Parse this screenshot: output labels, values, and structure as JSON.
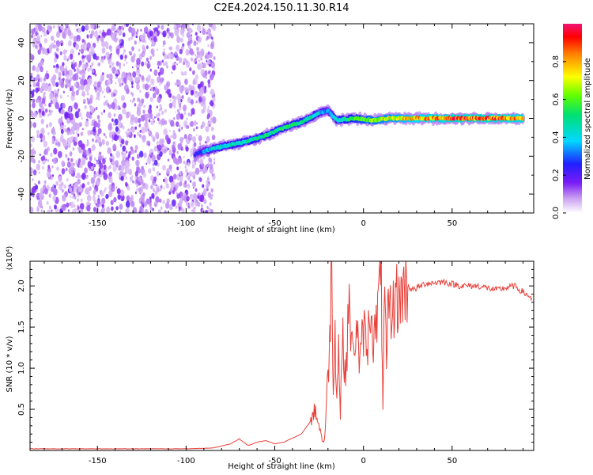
{
  "title": "C2E4.2024.150.11.30.R14",
  "chart_data": [
    {
      "type": "heatmap",
      "xlabel": "Height of straight line (km)",
      "ylabel": "Frequency (Hz)",
      "xlim": [
        -188,
        96
      ],
      "ylim": [
        -50,
        50
      ],
      "x_ticks": [
        -150,
        -100,
        -50,
        0,
        50
      ],
      "y_ticks": [
        -40,
        -20,
        0,
        20,
        40
      ],
      "colorbar": {
        "label": "Normalized spectral amplitude",
        "range": [
          0,
          1
        ],
        "ticks": [
          0.0,
          0.2,
          0.4,
          0.6,
          0.8
        ]
      },
      "noise_region": {
        "x": [
          -188,
          -84
        ],
        "note_values": "scattered low-amplitude purple speckle across full frequency range"
      },
      "signal_trace": [
        {
          "x": -95,
          "y": -19,
          "amp": 0.25
        },
        {
          "x": -85,
          "y": -16,
          "amp": 0.45
        },
        {
          "x": -75,
          "y": -14,
          "amp": 0.5
        },
        {
          "x": -65,
          "y": -12,
          "amp": 0.5
        },
        {
          "x": -55,
          "y": -9,
          "amp": 0.55
        },
        {
          "x": -45,
          "y": -5,
          "amp": 0.55
        },
        {
          "x": -35,
          "y": -2,
          "amp": 0.55
        },
        {
          "x": -25,
          "y": 3,
          "amp": 0.45
        },
        {
          "x": -20,
          "y": 4,
          "amp": 0.35
        },
        {
          "x": -15,
          "y": -1,
          "amp": 0.5
        },
        {
          "x": -5,
          "y": 0,
          "amp": 0.6
        },
        {
          "x": 5,
          "y": -1,
          "amp": 0.7
        },
        {
          "x": 15,
          "y": 0,
          "amp": 0.75
        },
        {
          "x": 30,
          "y": 0,
          "amp": 0.85
        },
        {
          "x": 50,
          "y": 0,
          "amp": 0.95
        },
        {
          "x": 70,
          "y": 0,
          "amp": 0.95
        },
        {
          "x": 90,
          "y": 0,
          "amp": 0.9
        }
      ]
    },
    {
      "type": "line",
      "xlabel": "Height of straight line (km)",
      "ylabel": "SNR (10 * v/v)",
      "y_scale_label": "(x10⁴)",
      "xlim": [
        -188,
        96
      ],
      "ylim": [
        0,
        2.3
      ],
      "x_ticks": [
        -150,
        -100,
        -50,
        0,
        50
      ],
      "y_ticks": [
        0.5,
        1.0,
        1.5,
        2.0
      ],
      "y_tick_labels": [
        "0.5",
        "1.0",
        "1.5",
        "2.0"
      ],
      "color": "#e8403a",
      "series": [
        {
          "x": [
            -188,
            -150,
            -100,
            -85,
            -75,
            -70,
            -65,
            -60,
            -55,
            -50,
            -45,
            -40,
            -35,
            -30,
            -27,
            -24,
            -22,
            -20,
            -19,
            -18,
            -17,
            -16,
            -15,
            -14,
            -13,
            -12,
            -10,
            -8,
            -6,
            -4,
            -2,
            0,
            2,
            4,
            6,
            8,
            10,
            11,
            12,
            13,
            14,
            16,
            18,
            20,
            22,
            25,
            28,
            35,
            45,
            55,
            65,
            75,
            85,
            95
          ],
          "y": [
            0.02,
            0.02,
            0.02,
            0.03,
            0.08,
            0.14,
            0.06,
            0.1,
            0.12,
            0.08,
            0.1,
            0.15,
            0.2,
            0.35,
            0.5,
            0.2,
            0.1,
            0.9,
            1.4,
            2.3,
            0.8,
            1.5,
            0.6,
            1.3,
            0.4,
            1.4,
            0.9,
            1.8,
            1.1,
            1.6,
            1.0,
            1.5,
            1.2,
            1.8,
            1.3,
            1.7,
            2.1,
            0.6,
            1.9,
            0.9,
            1.8,
            1.6,
            1.9,
            1.8,
            1.95,
            2.0,
            1.95,
            2.03,
            2.05,
            2.0,
            2.0,
            1.95,
            2.0,
            1.85
          ]
        }
      ]
    }
  ]
}
